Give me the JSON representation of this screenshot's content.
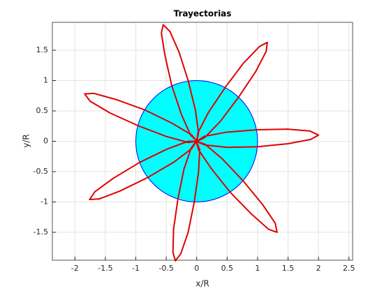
{
  "chart_data": {
    "type": "line",
    "title": "Trayectorias",
    "xlabel": "x/R",
    "ylabel": "y/R",
    "xlim": [
      -2.37,
      2.56
    ],
    "ylim": [
      -1.96,
      1.96
    ],
    "xticks": [
      -2,
      -1.5,
      -1,
      -0.5,
      0,
      0.5,
      1,
      1.5,
      2,
      2.5
    ],
    "yticks": [
      -1.5,
      -1,
      -0.5,
      0,
      0.5,
      1,
      1.5
    ],
    "grid": true,
    "circle": {
      "center": [
        0,
        0
      ],
      "radius": 1,
      "color": "#00ffff",
      "edgecolor": "#0000ff"
    },
    "series": [
      {
        "color": "#e00000",
        "x": [
          -0.01,
          0.13,
          0.5,
          1.0,
          1.5,
          1.87,
          2.0,
          1.86,
          1.49,
          0.99,
          0.49,
          0.12,
          -0.01,
          0.13,
          0.39,
          0.69,
          0.97,
          1.14,
          1.16,
          1.03,
          0.77,
          0.47,
          0.19,
          0.02,
          0.0,
          0.03,
          -0.02,
          -0.14,
          -0.29,
          -0.44,
          -0.55,
          -0.58,
          -0.52,
          -0.41,
          -0.25,
          -0.1,
          0.01,
          -0.09,
          -0.41,
          -0.86,
          -1.33,
          -1.69,
          -1.84,
          -1.75,
          -1.43,
          -0.97,
          -0.5,
          -0.14,
          0.01,
          -0.14,
          -0.49,
          -0.94,
          -1.37,
          -1.67,
          -1.76,
          -1.6,
          -1.26,
          -0.81,
          -0.37,
          -0.08,
          0.0,
          -0.09,
          -0.21,
          -0.31,
          -0.38,
          -0.39,
          -0.35,
          -0.26,
          -0.14,
          -0.04,
          0.03,
          0.05,
          -0.01,
          0.03,
          0.24,
          0.55,
          0.9,
          1.18,
          1.32,
          1.29,
          1.08,
          0.76,
          0.42,
          0.14,
          -0.01
        ],
        "y": [
          0.0,
          -0.06,
          -0.1,
          -0.09,
          -0.04,
          0.03,
          0.1,
          0.17,
          0.2,
          0.19,
          0.15,
          0.08,
          -0.01,
          0.06,
          0.33,
          0.73,
          1.15,
          1.48,
          1.63,
          1.56,
          1.29,
          0.89,
          0.47,
          0.14,
          -0.01,
          0.14,
          0.51,
          1.0,
          1.47,
          1.81,
          1.92,
          1.78,
          1.41,
          0.92,
          0.44,
          0.1,
          0.0,
          0.11,
          0.3,
          0.52,
          0.69,
          0.79,
          0.78,
          0.66,
          0.47,
          0.26,
          0.08,
          -0.02,
          0.0,
          0.0,
          -0.13,
          -0.35,
          -0.61,
          -0.83,
          -0.96,
          -0.95,
          -0.82,
          -0.6,
          -0.34,
          -0.12,
          0.01,
          -0.11,
          -0.46,
          -0.96,
          -1.45,
          -1.83,
          -1.97,
          -1.85,
          -1.5,
          -1.0,
          -0.51,
          -0.14,
          0.01,
          -0.14,
          -0.45,
          -0.84,
          -1.2,
          -1.45,
          -1.5,
          -1.35,
          -1.04,
          -0.65,
          -0.29,
          -0.05,
          0.0
        ]
      }
    ]
  }
}
